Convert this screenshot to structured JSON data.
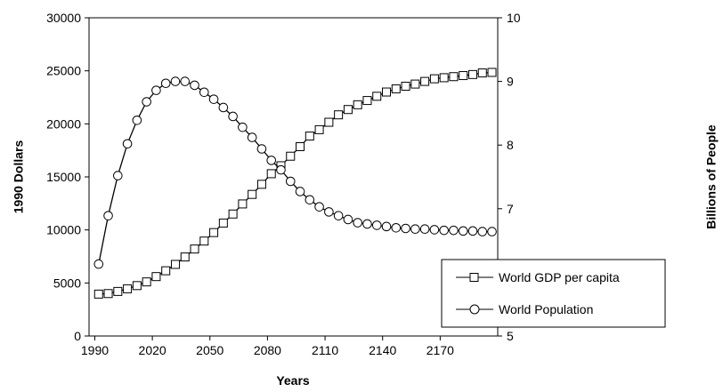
{
  "chart_data": {
    "type": "line",
    "xlabel": "Years",
    "ylabel_left": "1990 Dollars",
    "ylabel_right": "Billions of People",
    "x_ticks": [
      "1990",
      "2020",
      "2050",
      "2080",
      "2110",
      "2140",
      "2170"
    ],
    "y_left_ticks": [
      "0",
      "5000",
      "10000",
      "15000",
      "20000",
      "25000",
      "30000"
    ],
    "y_right_ticks": [
      "5",
      "6",
      "7",
      "8",
      "9",
      "10"
    ],
    "xlim": [
      1987,
      2200
    ],
    "ylim_left": [
      0,
      30000
    ],
    "ylim_right": [
      5,
      10
    ],
    "grid": false,
    "legend_position": "bottom-right",
    "x": [
      1992,
      1997,
      2002,
      2007,
      2012,
      2017,
      2022,
      2027,
      2032,
      2037,
      2042,
      2047,
      2052,
      2057,
      2062,
      2067,
      2072,
      2077,
      2082,
      2087,
      2092,
      2097,
      2102,
      2107,
      2112,
      2117,
      2122,
      2127,
      2132,
      2137,
      2142,
      2147,
      2152,
      2157,
      2162,
      2167,
      2172,
      2177,
      2182,
      2187,
      2192,
      2197
    ],
    "series": [
      {
        "name": "World GDP per capita",
        "axis": "left",
        "marker": "square",
        "values": [
          3950,
          4000,
          4200,
          4450,
          4750,
          5100,
          5600,
          6150,
          6750,
          7450,
          8200,
          8950,
          9750,
          10650,
          11500,
          12450,
          13350,
          14300,
          15300,
          16050,
          16950,
          17850,
          18850,
          19450,
          20150,
          20850,
          21350,
          21800,
          22200,
          22600,
          23000,
          23300,
          23550,
          23750,
          24000,
          24250,
          24350,
          24450,
          24550,
          24650,
          24800,
          24850
        ]
      },
      {
        "name": "World Population",
        "axis": "right",
        "marker": "circle",
        "values": [
          6.13,
          6.89,
          7.52,
          8.02,
          8.39,
          8.68,
          8.86,
          8.97,
          9.0,
          9.0,
          8.94,
          8.83,
          8.72,
          8.59,
          8.45,
          8.28,
          8.12,
          7.94,
          7.76,
          7.61,
          7.43,
          7.27,
          7.14,
          7.03,
          6.95,
          6.89,
          6.83,
          6.78,
          6.76,
          6.74,
          6.72,
          6.7,
          6.69,
          6.68,
          6.68,
          6.67,
          6.66,
          6.66,
          6.65,
          6.65,
          6.64,
          6.64
        ]
      }
    ]
  }
}
